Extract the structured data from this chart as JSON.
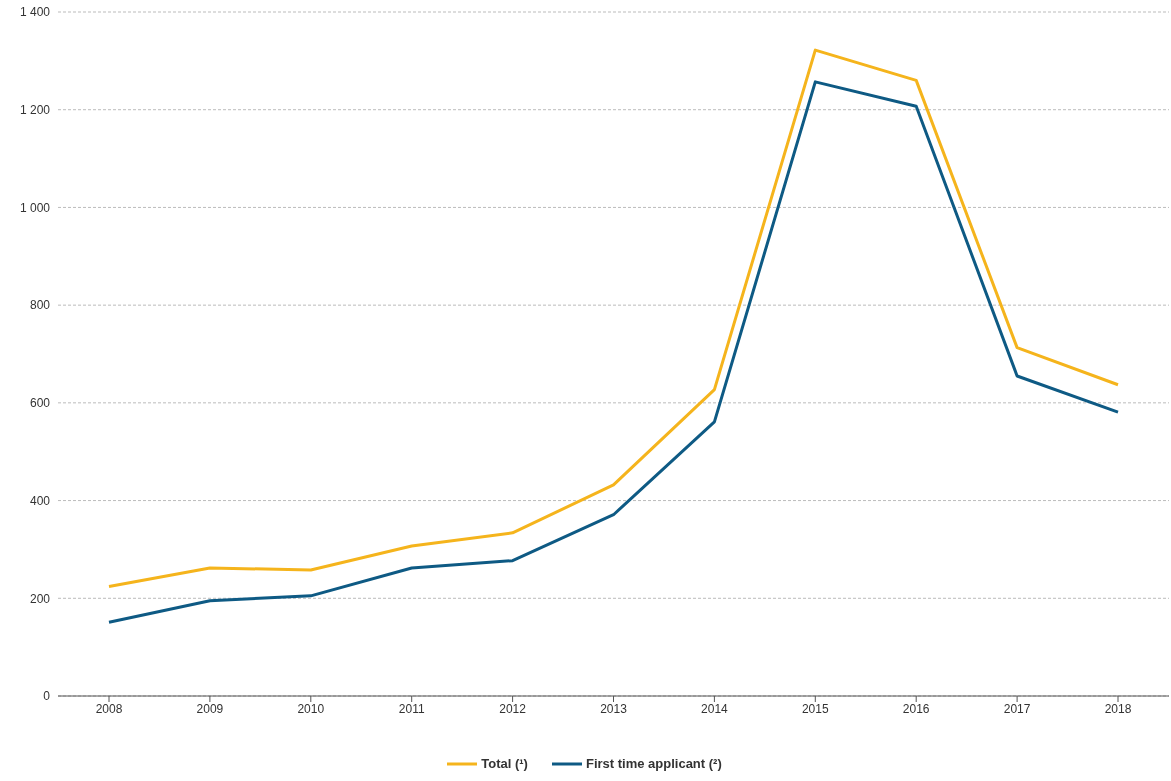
{
  "chart_data": {
    "type": "line",
    "categories": [
      "2008",
      "2009",
      "2010",
      "2011",
      "2012",
      "2013",
      "2014",
      "2015",
      "2016",
      "2017",
      "2018"
    ],
    "series": [
      {
        "name": "Total (¹)",
        "color": "#f5b41c",
        "values": [
          224,
          262,
          258,
          307,
          334,
          432,
          627,
          1322,
          1260,
          713,
          637
        ]
      },
      {
        "name": "First time applicant (²)",
        "color": "#0e5a84",
        "values": [
          151,
          195,
          205,
          262,
          277,
          371,
          561,
          1257,
          1207,
          655,
          581
        ]
      }
    ],
    "ylim": [
      0,
      1400
    ],
    "yticks": [
      0,
      200,
      400,
      600,
      800,
      {
        "value": 1000,
        "label": "1 000"
      },
      {
        "value": 1200,
        "label": "1 200"
      },
      {
        "value": 1400,
        "label": "1 400"
      }
    ],
    "grid": "y",
    "legend": "bottom",
    "marker": "none",
    "line_style": "solid"
  }
}
